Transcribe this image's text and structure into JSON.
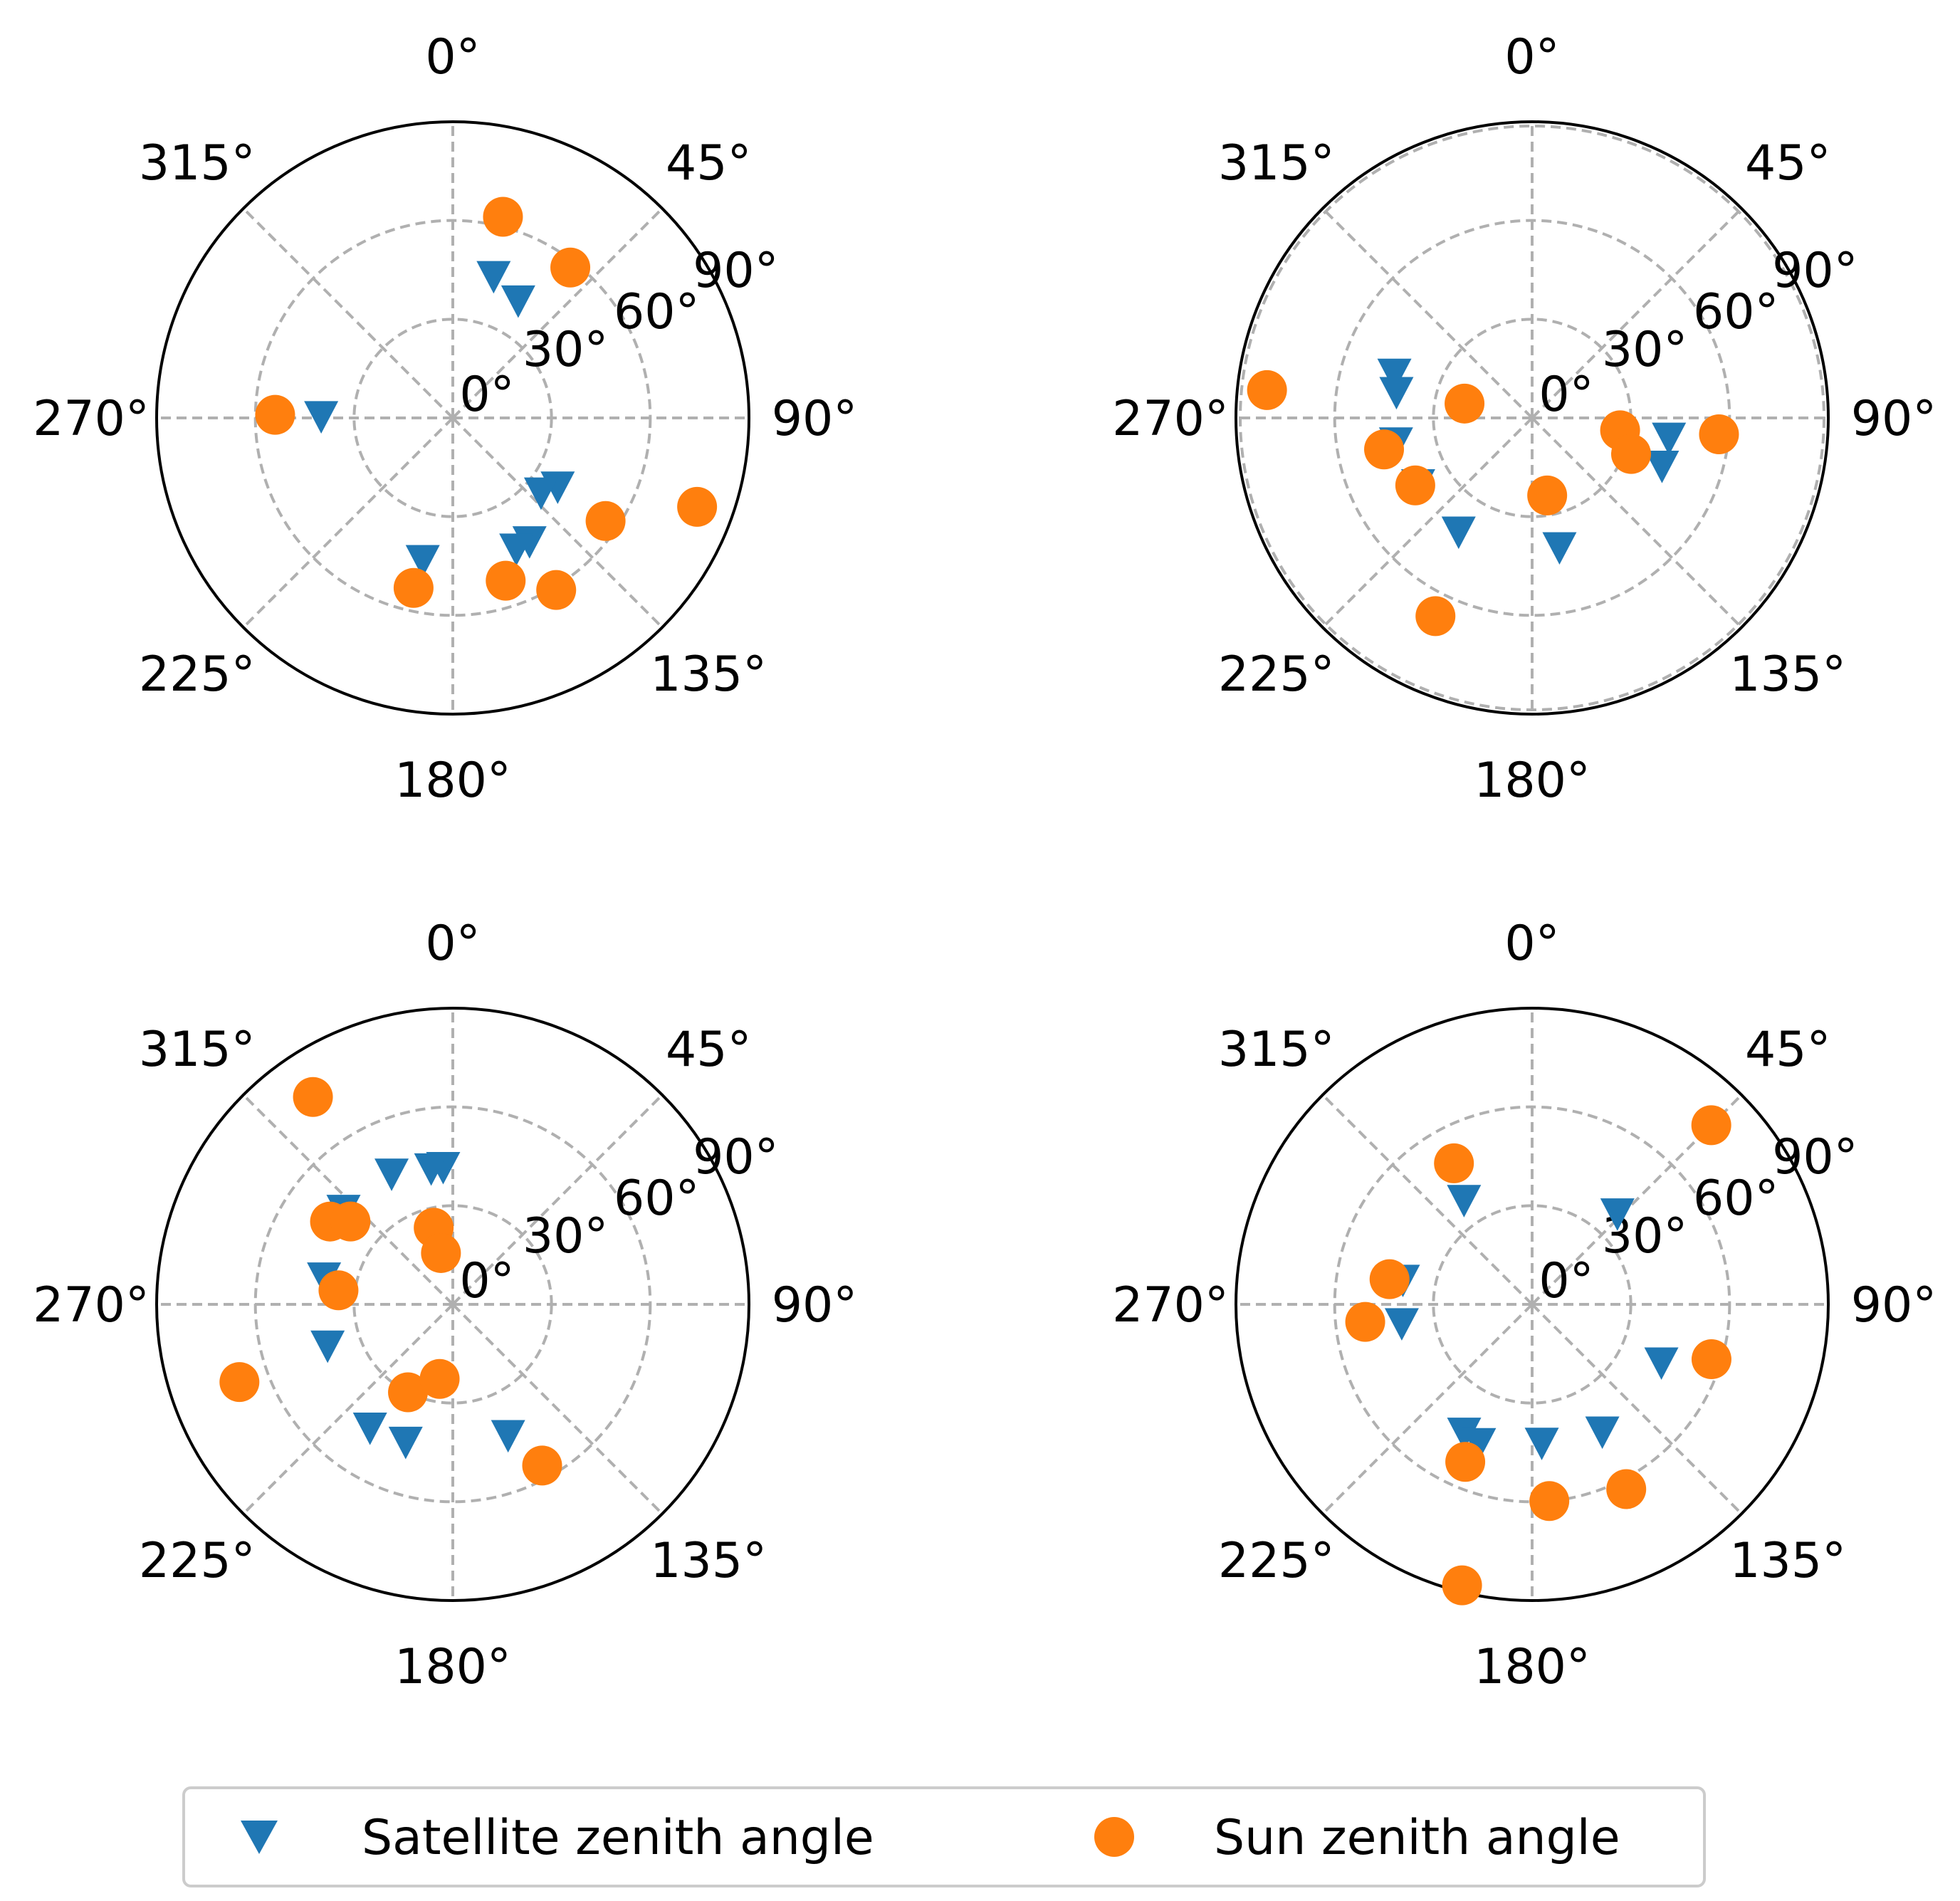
{
  "colors": {
    "satellite": "#1f77b4",
    "sun": "#ff7f0e",
    "grid": "#b0b0b0",
    "axis": "#000000",
    "legend_border": "#cccccc"
  },
  "legend": {
    "items": [
      {
        "label": "Satellite zenith angle",
        "marker": "triangle-down",
        "color": "#1f77b4"
      },
      {
        "label": "Sun zenith angle",
        "marker": "circle",
        "color": "#ff7f0e"
      }
    ]
  },
  "chart_data": [
    {
      "type": "scatter",
      "projection": "polar",
      "theta_direction": "clockwise",
      "theta_zero": "north",
      "theta_ticks": [
        "0°",
        "45°",
        "90°",
        "135°",
        "180°",
        "225°",
        "270°",
        "315°"
      ],
      "r_ticks": [
        "0°",
        "30°",
        "60°",
        "90°"
      ],
      "rlim": [
        0,
        90
      ],
      "grid": true,
      "series": [
        {
          "name": "Satellite zenith angle",
          "marker": "triangle-down",
          "points": [
            {
              "theta": 16,
              "r": 45
            },
            {
              "theta": 29,
              "r": 41
            },
            {
              "theta": 271,
              "r": 40
            },
            {
              "theta": 123,
              "r": 38
            },
            {
              "theta": 130,
              "r": 35
            },
            {
              "theta": 148,
              "r": 44
            },
            {
              "theta": 154,
              "r": 44
            },
            {
              "theta": 192,
              "r": 44
            }
          ]
        },
        {
          "name": "Sun zenith angle",
          "marker": "circle",
          "points": [
            {
              "theta": 14,
              "r": 63
            },
            {
              "theta": 38,
              "r": 58
            },
            {
              "theta": 271,
              "r": 54
            },
            {
              "theta": 110,
              "r": 79
            },
            {
              "theta": 124,
              "r": 56
            },
            {
              "theta": 149,
              "r": 61
            },
            {
              "theta": 162,
              "r": 52
            },
            {
              "theta": 193,
              "r": 53
            }
          ]
        }
      ]
    },
    {
      "type": "scatter",
      "projection": "polar",
      "theta_direction": "clockwise",
      "theta_zero": "north",
      "theta_ticks": [
        "0°",
        "45°",
        "90°",
        "135°",
        "180°",
        "225°",
        "270°",
        "315°"
      ],
      "r_ticks": [
        "0°",
        "30°",
        "60°",
        "90°"
      ],
      "rlim": [
        0,
        90
      ],
      "grid": true,
      "series": [
        {
          "name": "Satellite zenith angle",
          "marker": "triangle-down",
          "points": [
            {
              "theta": 288,
              "r": 44
            },
            {
              "theta": 281,
              "r": 42
            },
            {
              "theta": 260,
              "r": 42
            },
            {
              "theta": 240,
              "r": 40
            },
            {
              "theta": 213,
              "r": 41
            },
            {
              "theta": 168,
              "r": 40
            },
            {
              "theta": 98,
              "r": 42
            },
            {
              "theta": 110,
              "r": 42
            }
          ]
        },
        {
          "name": "Sun zenith angle",
          "marker": "circle",
          "points": [
            {
              "theta": 276,
              "r": 81
            },
            {
              "theta": 282,
              "r": 21
            },
            {
              "theta": 258,
              "r": 46
            },
            {
              "theta": 240,
              "r": 41
            },
            {
              "theta": 206,
              "r": 67
            },
            {
              "theta": 169,
              "r": 24
            },
            {
              "theta": 98,
              "r": 27
            },
            {
              "theta": 95,
              "r": 57
            },
            {
              "theta": 110,
              "r": 32
            }
          ]
        }
      ]
    },
    {
      "type": "scatter",
      "projection": "polar",
      "theta_direction": "clockwise",
      "theta_zero": "north",
      "theta_ticks": [
        "0°",
        "45°",
        "90°",
        "135°",
        "180°",
        "225°",
        "270°",
        "315°"
      ],
      "r_ticks": [
        "0°",
        "30°",
        "60°",
        "90°"
      ],
      "rlim": [
        0,
        90
      ],
      "grid": true,
      "series": [
        {
          "name": "Satellite zenith angle",
          "marker": "triangle-down",
          "points": [
            {
              "theta": 356,
              "r": 42
            },
            {
              "theta": 351,
              "r": 42
            },
            {
              "theta": 335,
              "r": 44
            },
            {
              "theta": 311,
              "r": 44
            },
            {
              "theta": 282,
              "r": 40
            },
            {
              "theta": 252,
              "r": 40
            },
            {
              "theta": 214,
              "r": 45
            },
            {
              "theta": 199,
              "r": 44
            },
            {
              "theta": 157,
              "r": 43
            }
          ]
        },
        {
          "name": "Sun zenith angle",
          "marker": "circle",
          "points": [
            {
              "theta": 326,
              "r": 76
            },
            {
              "theta": 304,
              "r": 45
            },
            {
              "theta": 309,
              "r": 40
            },
            {
              "theta": 277,
              "r": 35
            },
            {
              "theta": 250,
              "r": 69
            },
            {
              "theta": 207,
              "r": 30
            },
            {
              "theta": 190,
              "r": 23
            },
            {
              "theta": 346,
              "r": 24
            },
            {
              "theta": 347,
              "r": 16
            },
            {
              "theta": 151,
              "r": 56
            }
          ]
        }
      ]
    },
    {
      "type": "scatter",
      "projection": "polar",
      "theta_direction": "clockwise",
      "theta_zero": "north",
      "theta_ticks": [
        "0°",
        "45°",
        "90°",
        "135°",
        "180°",
        "225°",
        "270°",
        "315°"
      ],
      "r_ticks": [
        "0°",
        "30°",
        "60°",
        "90°"
      ],
      "rlim": [
        0,
        90
      ],
      "grid": true,
      "series": [
        {
          "name": "Satellite zenith angle",
          "marker": "triangle-down",
          "points": [
            {
              "theta": 327,
              "r": 38
            },
            {
              "theta": 281,
              "r": 40
            },
            {
              "theta": 262,
              "r": 40
            },
            {
              "theta": 208,
              "r": 44
            },
            {
              "theta": 201,
              "r": 45
            },
            {
              "theta": 176,
              "r": 42
            },
            {
              "theta": 151,
              "r": 44
            },
            {
              "theta": 114,
              "r": 43
            },
            {
              "theta": 43,
              "r": 38
            }
          ]
        },
        {
          "name": "Sun zenith angle",
          "marker": "circle",
          "points": [
            {
              "theta": 331,
              "r": 49
            },
            {
              "theta": 280,
              "r": 44
            },
            {
              "theta": 264,
              "r": 51
            },
            {
              "theta": 203,
              "r": 52
            },
            {
              "theta": 194,
              "r": 88
            },
            {
              "theta": 175,
              "r": 60
            },
            {
              "theta": 153,
              "r": 63
            },
            {
              "theta": 107,
              "r": 57
            },
            {
              "theta": 45,
              "r": 77
            }
          ]
        }
      ]
    }
  ]
}
